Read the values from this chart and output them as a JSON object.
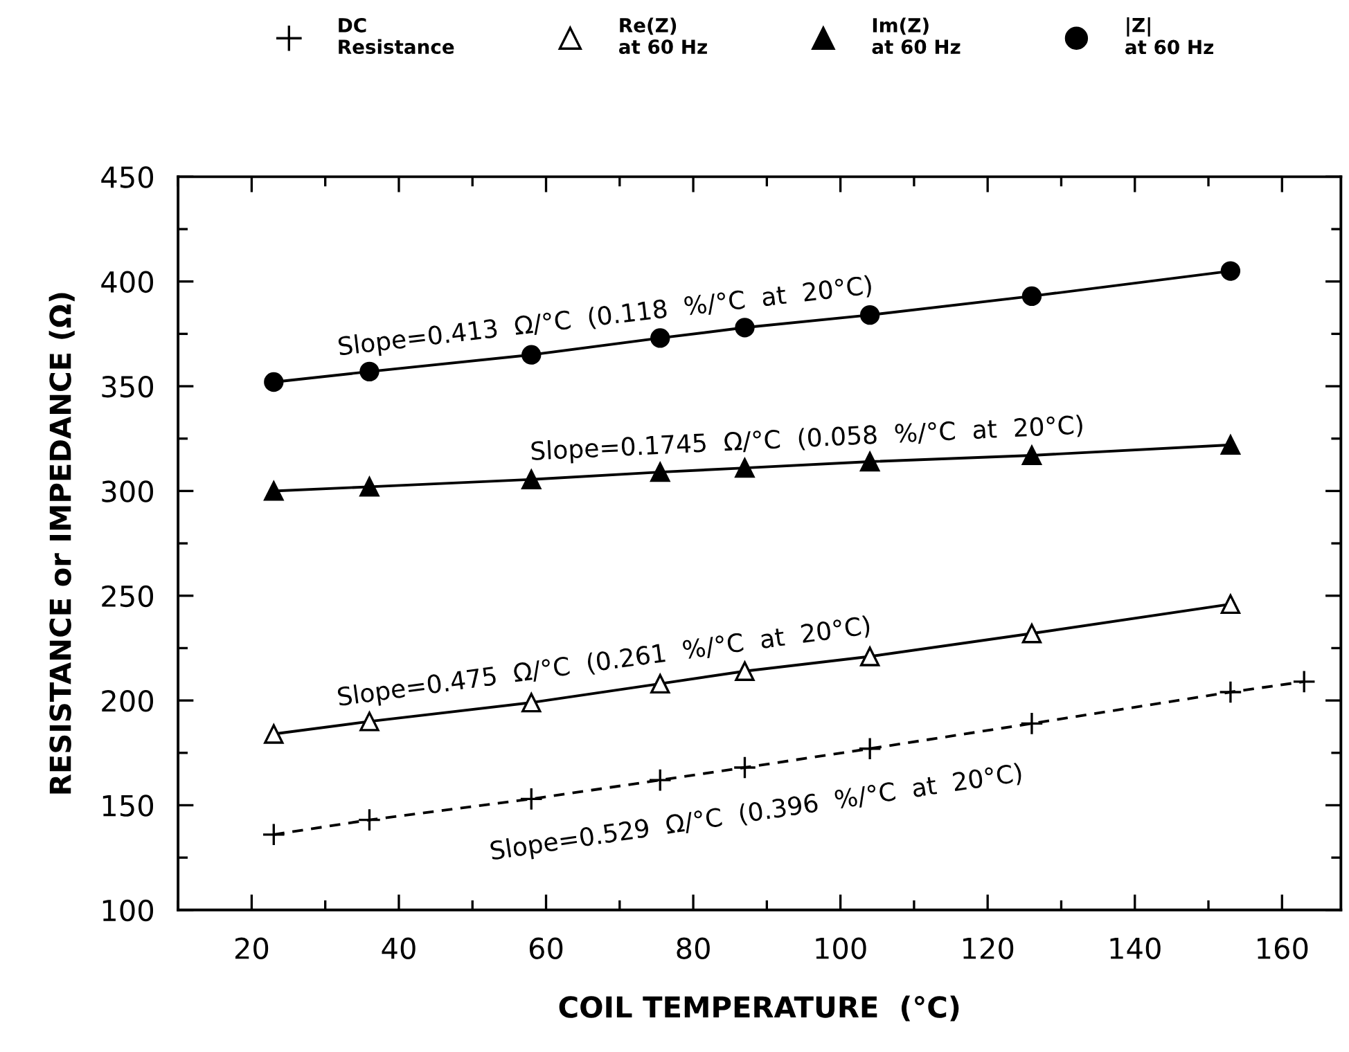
{
  "chart_data": {
    "type": "line",
    "xlabel": "COIL TEMPERATURE  (°C)",
    "ylabel": "RESISTANCE or IMPEDANCE (Ω)",
    "xlim": [
      10,
      168
    ],
    "xticks": [
      20,
      40,
      60,
      80,
      100,
      120,
      140,
      160
    ],
    "ylim": [
      100,
      450
    ],
    "yticks": [
      100,
      150,
      200,
      250,
      300,
      350,
      400,
      450
    ],
    "grid": false,
    "legend": "top",
    "series": [
      {
        "name": "DC\nResistance",
        "color": "#000000",
        "marker": "cross",
        "line_style": "dashed",
        "x": [
          23,
          36,
          58,
          75.5,
          87,
          104,
          126,
          153,
          163
        ],
        "values": [
          136,
          143,
          153,
          162,
          168,
          177,
          189,
          204,
          209
        ]
      },
      {
        "name": "Re(Z)\nat 60 Hz",
        "color": "#000000",
        "marker": "triangle_open",
        "line_style": "solid",
        "x": [
          23,
          36,
          58,
          75.5,
          87,
          104,
          126,
          153
        ],
        "values": [
          184,
          190,
          199,
          208,
          214,
          221,
          232,
          246
        ]
      },
      {
        "name": "Im(Z)\nat 60 Hz",
        "color": "#000000",
        "marker": "triangle",
        "line_style": "solid",
        "x": [
          23,
          36,
          58,
          75.5,
          87,
          104,
          126,
          153
        ],
        "values": [
          300,
          302,
          305.5,
          309,
          311,
          314,
          317,
          322
        ]
      },
      {
        "name": "|Z|\nat 60 Hz",
        "color": "#000000",
        "marker": "circle",
        "line_style": "solid",
        "x": [
          23,
          36,
          58,
          75.5,
          87,
          104,
          126,
          153
        ],
        "values": [
          352,
          357,
          365,
          373,
          378,
          384,
          393,
          405
        ]
      }
    ],
    "annotations": [
      "Slope=0.529  Ω/°C  (0.396  %/°C  at  20°C)",
      "Slope=0.475  Ω/°C  (0.261  %/°C  at  20°C)",
      "Slope=0.1745  Ω/°C  (0.058  %/°C  at  20°C)",
      "Slope=0.413  Ω/°C  (0.118  %/°C  at  20°C)"
    ]
  }
}
